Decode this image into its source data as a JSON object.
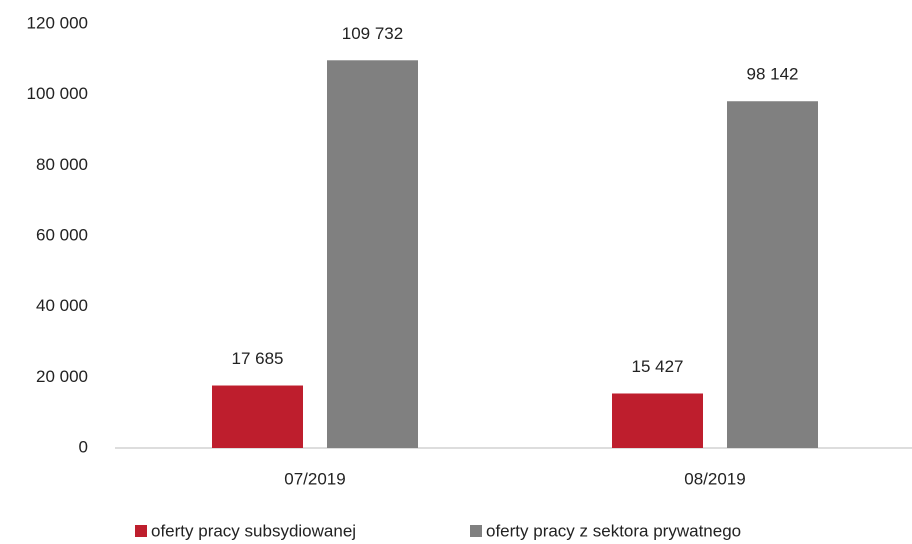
{
  "chart_data": {
    "type": "bar",
    "categories": [
      "07/2019",
      "08/2019"
    ],
    "series": [
      {
        "name": "oferty pracy subsydiowanej",
        "color": "#be1e2d",
        "values": [
          17685,
          15427
        ],
        "value_labels": [
          "17 685",
          "15 427"
        ]
      },
      {
        "name": "oferty pracy z sektora prywatnego",
        "color": "#808080",
        "values": [
          109732,
          98142
        ],
        "value_labels": [
          "109 732",
          "98 142"
        ]
      }
    ],
    "ylim": [
      0,
      120000
    ],
    "yticks": [
      0,
      {
        "value": 20000,
        "label": "20 000"
      },
      {
        "value": 40000,
        "label": "40 000"
      },
      {
        "value": 60000,
        "label": "60 000"
      },
      {
        "value": 80000,
        "label": "80 000"
      },
      {
        "value": 100000,
        "label": "100 000"
      },
      {
        "value": 120000,
        "label": "120 000"
      }
    ],
    "grid": false,
    "legend": "bottom"
  }
}
